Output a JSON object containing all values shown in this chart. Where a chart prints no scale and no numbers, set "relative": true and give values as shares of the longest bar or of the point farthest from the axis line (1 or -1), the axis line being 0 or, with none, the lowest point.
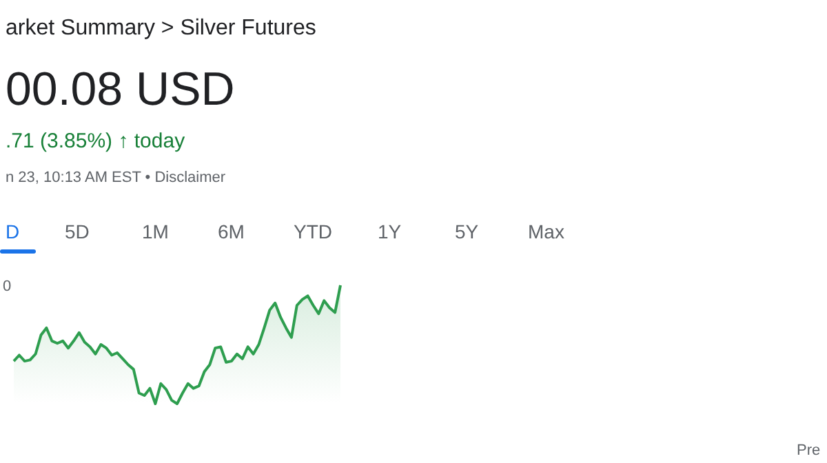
{
  "chart_data": {
    "type": "area",
    "title": "arket Summary > Silver Futures",
    "relative": true,
    "annotations": [
      "00.08 USD",
      ".71 (3.85%) ↑ today",
      "n 23, 10:13 AM EST • Disclaimer",
      "D",
      "5D",
      "1M",
      "6M",
      "YTD",
      "1Y",
      "5Y",
      "Max",
      "0",
      "Pre"
    ],
    "categories": [
      null,
      null,
      null,
      null,
      null,
      null,
      null,
      null,
      null,
      null,
      null,
      null,
      null,
      null,
      null,
      null,
      null,
      null,
      null,
      null,
      null,
      null,
      null,
      null,
      null,
      null,
      null,
      null,
      null,
      null,
      null,
      null,
      null,
      null,
      null,
      null,
      null,
      null,
      null,
      null,
      null,
      null,
      null,
      null,
      null,
      null,
      null,
      null,
      null,
      null,
      null,
      null,
      null,
      null,
      null,
      null,
      null,
      null,
      null,
      null,
      null
    ],
    "series": [
      {
        "color": "#2e9e4f",
        "values": [
          0.36,
          0.41,
          0.36,
          0.37,
          0.42,
          0.58,
          0.64,
          0.53,
          0.51,
          0.53,
          0.47,
          0.53,
          0.6,
          0.52,
          0.48,
          0.42,
          0.5,
          0.47,
          0.41,
          0.43,
          0.38,
          0.33,
          0.29,
          0.09,
          0.07,
          0.13,
          0,
          0.17,
          0.12,
          0.03,
          0,
          0.09,
          0.17,
          0.13,
          0.15,
          0.27,
          0.33,
          0.47,
          0.48,
          0.35,
          0.36,
          0.42,
          0.38,
          0.48,
          0.42,
          0.5,
          0.64,
          0.79,
          0.85,
          0.73,
          0.64,
          0.56,
          0.83,
          0.88,
          0.91,
          0.83,
          0.76,
          0.87,
          0.81,
          0.77,
          1
        ]
      }
    ]
  }
}
